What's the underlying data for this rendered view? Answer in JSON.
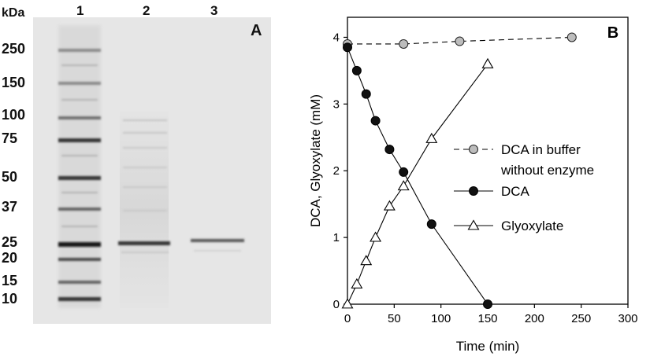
{
  "panel_a": {
    "letter": "A",
    "kda_label": "kDa",
    "lanes": [
      "1",
      "2",
      "3"
    ],
    "markers": [
      "250",
      "150",
      "100",
      "75",
      "50",
      "37",
      "25",
      "20",
      "15",
      "10"
    ]
  },
  "chart_data": {
    "type": "line",
    "panel_letter": "B",
    "xlabel": "Time (min)",
    "ylabel": "DCA, Glyoxylate (mM)",
    "xlim": [
      0,
      300
    ],
    "ylim": [
      0,
      4.3
    ],
    "xticks": [
      "0",
      "50",
      "100",
      "150",
      "200",
      "250",
      "300"
    ],
    "yticks": [
      "0",
      "1",
      "2",
      "3",
      "4"
    ],
    "legend_position": "center-right",
    "series": [
      {
        "name": "DCA in buffer without enzyme",
        "legend_lines": [
          "DCA in buffer",
          "without enzyme"
        ],
        "marker": "circle-gray",
        "line": "dashed",
        "x": [
          0,
          60,
          120,
          240
        ],
        "y": [
          3.9,
          3.9,
          3.94,
          4.0
        ]
      },
      {
        "name": "DCA",
        "legend_lines": [
          "DCA"
        ],
        "marker": "circle-black",
        "line": "solid",
        "x": [
          0,
          10,
          20,
          30,
          45,
          60,
          90,
          150
        ],
        "y": [
          3.85,
          3.5,
          3.15,
          2.75,
          2.32,
          1.98,
          1.2,
          0.0
        ]
      },
      {
        "name": "Glyoxylate",
        "legend_lines": [
          "Glyoxylate"
        ],
        "marker": "triangle-open",
        "line": "solid",
        "x": [
          0,
          10,
          20,
          30,
          45,
          60,
          90,
          150
        ],
        "y": [
          0.0,
          0.3,
          0.65,
          1.0,
          1.47,
          1.77,
          2.48,
          3.6
        ]
      }
    ]
  },
  "colors": {
    "gray_marker": "#bdbdbd",
    "black_marker": "#111111",
    "gel_bg": "#e6e6e6"
  }
}
